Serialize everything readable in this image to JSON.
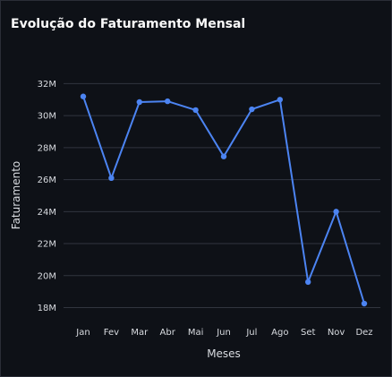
{
  "chart_data": {
    "type": "line",
    "title": "Evolução do Faturamento Mensal",
    "xlabel": "Meses",
    "ylabel": "Faturamento",
    "categories": [
      "Jan",
      "Fev",
      "Mar",
      "Abr",
      "Mai",
      "Jun",
      "Jul",
      "Ago",
      "Set",
      "Nov",
      "Dez"
    ],
    "series": [
      {
        "values": [
          31.2,
          26.1,
          30.85,
          30.9,
          30.35,
          27.45,
          30.4,
          31.0,
          19.6,
          24.0,
          18.25
        ]
      }
    ],
    "ylim": [
      17.3,
      33.2
    ],
    "yticks": [
      18,
      20,
      22,
      24,
      26,
      28,
      30,
      32
    ],
    "ytick_labels": [
      "18M",
      "20M",
      "22M",
      "24M",
      "26M",
      "28M",
      "30M",
      "32M"
    ],
    "grid": true,
    "line_color": "#4c84f2",
    "grid_color": "#31353f",
    "background": "#0e1117"
  }
}
